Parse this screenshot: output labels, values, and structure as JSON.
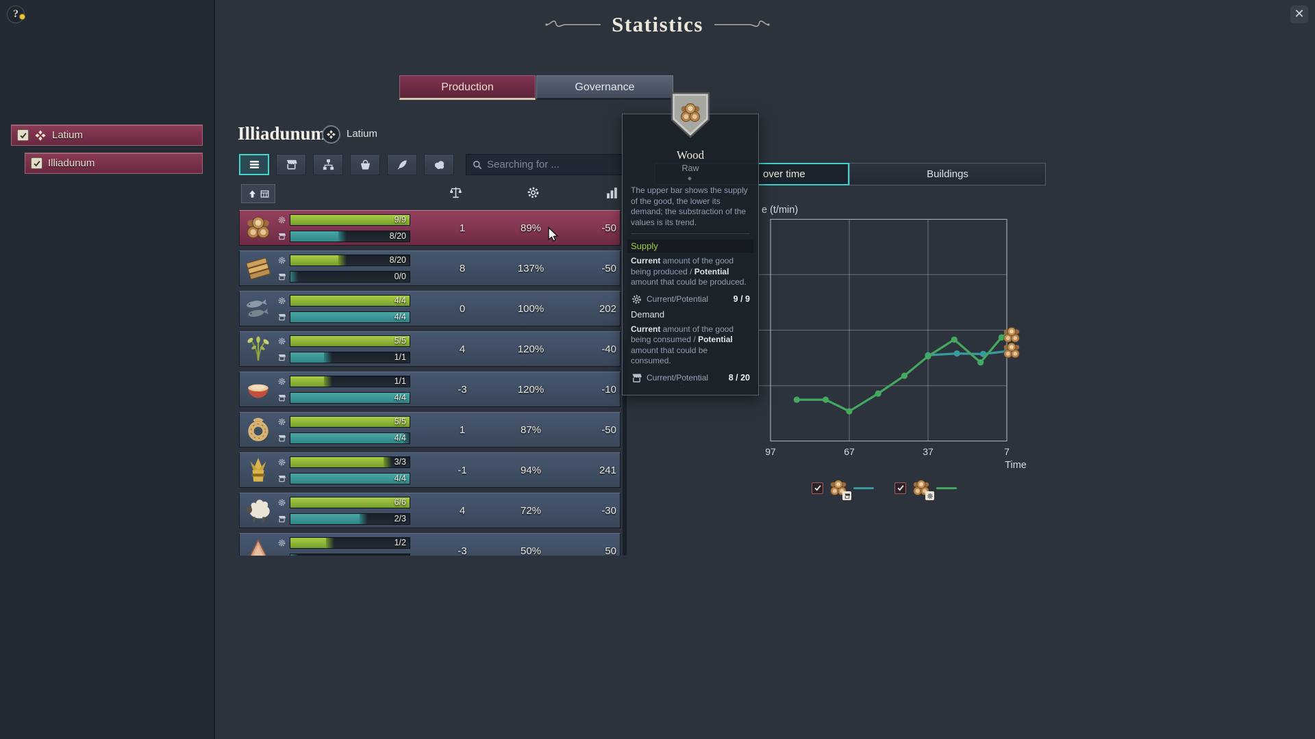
{
  "window": {
    "title": "Statistics",
    "help": "?",
    "close": "✕"
  },
  "tabs": {
    "production": "Production",
    "governance": "Governance"
  },
  "sidebar": {
    "items": [
      {
        "label": "Latium",
        "checked": true
      },
      {
        "label": "Illiadunum",
        "checked": true
      }
    ]
  },
  "main": {
    "city": "Illiadunum",
    "region": "Latium",
    "search_placeholder": "Searching for ...",
    "filter_icons": [
      "list",
      "market",
      "split",
      "basket",
      "feather",
      "wool"
    ],
    "column_icons": [
      "sort-storage",
      "balance",
      "efficiency",
      "trend"
    ],
    "rows": [
      {
        "good": "wood",
        "supply": "9/9",
        "demand": "8/20",
        "balance": "1",
        "efficiency": "89%",
        "trend": "-50",
        "supply_w": "100%",
        "demand_w": "40%",
        "selected": true
      },
      {
        "good": "planks",
        "supply": "8/20",
        "demand": "0/0",
        "balance": "8",
        "efficiency": "137%",
        "trend": "-50",
        "supply_w": "40%",
        "demand_w": "0%"
      },
      {
        "good": "fish",
        "supply": "4/4",
        "demand": "4/4",
        "balance": "0",
        "efficiency": "100%",
        "trend": "202",
        "supply_w": "100%",
        "demand_w": "100%"
      },
      {
        "good": "herbs",
        "supply": "5/5",
        "demand": "1/1",
        "balance": "4",
        "efficiency": "120%",
        "trend": "-40",
        "supply_w": "100%",
        "demand_w": "28%"
      },
      {
        "good": "porridge",
        "supply": "1/1",
        "demand": "4/4",
        "balance": "-3",
        "efficiency": "120%",
        "trend": "-10",
        "supply_w": "28%",
        "demand_w": "100%"
      },
      {
        "good": "rope",
        "supply": "5/5",
        "demand": "4/4",
        "balance": "1",
        "efficiency": "87%",
        "trend": "-50",
        "supply_w": "100%",
        "demand_w": "95%"
      },
      {
        "good": "hay",
        "supply": "3/3",
        "demand": "4/4",
        "balance": "-1",
        "efficiency": "94%",
        "trend": "241",
        "supply_w": "78%",
        "demand_w": "100%"
      },
      {
        "good": "sheep",
        "supply": "6/6",
        "demand": "2/3",
        "balance": "4",
        "efficiency": "72%",
        "trend": "-30",
        "supply_w": "100%",
        "demand_w": "58%"
      },
      {
        "good": "hide",
        "supply": "1/2",
        "demand": "",
        "balance": "-3",
        "efficiency": "50%",
        "trend": "50",
        "supply_w": "30%",
        "demand_w": "0%"
      }
    ]
  },
  "tooltip": {
    "title": "Wood",
    "subtitle": "Raw",
    "ornament": "◆",
    "description": "The upper bar shows the supply of the good, the lower its demand; the substraction of the values is its trend.",
    "supply": {
      "label": "Supply",
      "desc_b1": "Current",
      "desc_t1": " amount of the good being produced / ",
      "desc_b2": "Potential",
      "desc_t2": " amount that could be produced.",
      "stat_label": "Current/Potential",
      "stat_value": "9 / 9"
    },
    "demand": {
      "label": "Demand",
      "desc_b1": "Current",
      "desc_t1": " amount of the good being consumed / ",
      "desc_b2": "Potential",
      "desc_t2": " amount that could be consumed.",
      "stat_label": "Current/Potential",
      "stat_value": "8 / 20"
    }
  },
  "right": {
    "tab_rate": "over time",
    "tab_buildings": "Buildings",
    "axis_title": "e (t/min)",
    "time_label": "Time"
  },
  "chart_data": {
    "type": "line",
    "title": "Rate (t/min)",
    "xlabel": "Time",
    "x_ticks": [
      97,
      67,
      37,
      7
    ],
    "y_ticks": [
      5
    ],
    "grid_y": [
      5,
      6,
      7
    ],
    "xlim": [
      97,
      7
    ],
    "ylim": [
      4,
      8
    ],
    "legend_position": "bottom",
    "series": [
      {
        "name": "Wood demand",
        "color": "#3a9b9c",
        "x": [
          37,
          26,
          16,
          7
        ],
        "y": [
          5.55,
          5.58,
          5.57,
          5.62
        ]
      },
      {
        "name": "Wood supply",
        "color": "#45a861",
        "x": [
          87,
          76,
          67,
          56,
          46,
          37,
          27,
          17,
          9,
          7
        ],
        "y": [
          4.75,
          4.75,
          4.54,
          4.86,
          5.18,
          5.53,
          5.83,
          5.42,
          5.87,
          5.9
        ]
      }
    ]
  }
}
